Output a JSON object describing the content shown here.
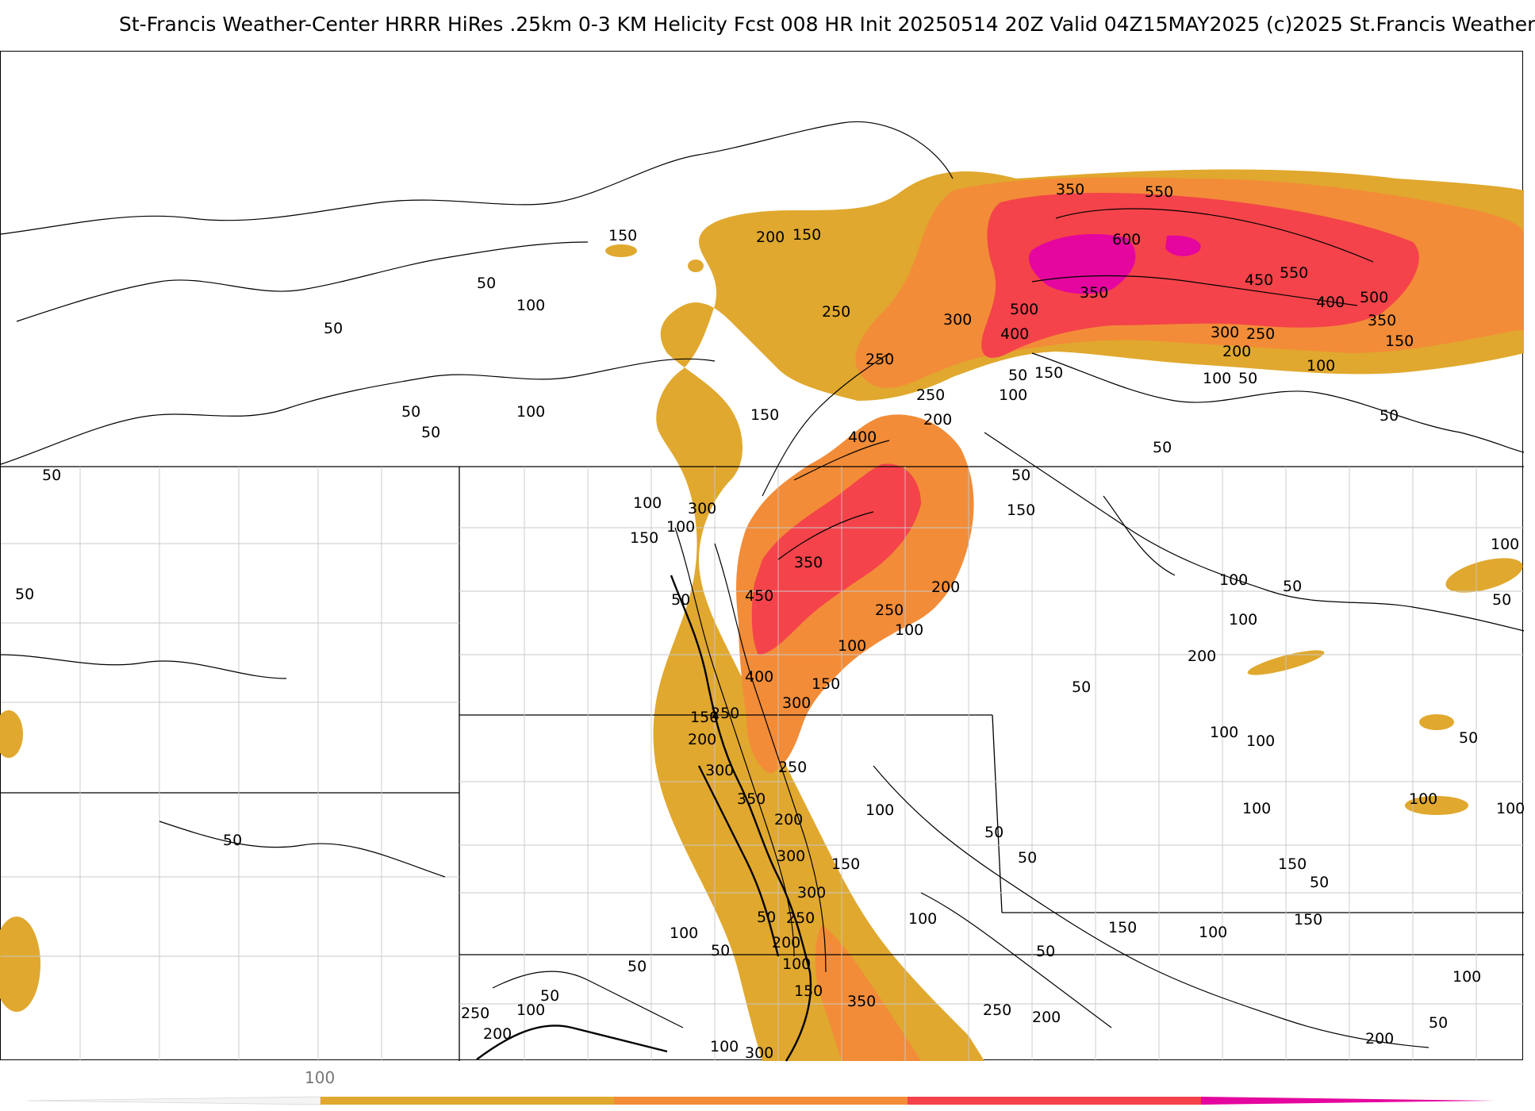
{
  "header": {
    "title": "St-Francis Weather-Center HRRR HiRes .25km 0-3 KM Helicity Fcst 008 HR Init 20250514 20Z  Valid 04Z15MAY2025     (c)2025 St.Francis Weather"
  },
  "map": {
    "shading_colors": {
      "c100": "#e0a82e",
      "c200": "#f28c38",
      "c300": "#f4434a",
      "c400": "#ec2d74",
      "c500": "#e4069f"
    },
    "contour_labels": [
      {
        "text": "350"
      },
      {
        "text": "550"
      },
      {
        "text": "600"
      },
      {
        "text": "150"
      },
      {
        "text": "200"
      },
      {
        "text": "150"
      },
      {
        "text": "50"
      },
      {
        "text": "100"
      },
      {
        "text": "50"
      },
      {
        "text": "250"
      },
      {
        "text": "300"
      },
      {
        "text": "500"
      },
      {
        "text": "400"
      },
      {
        "text": "350"
      },
      {
        "text": "450"
      },
      {
        "text": "550"
      },
      {
        "text": "400"
      },
      {
        "text": "500"
      },
      {
        "text": "350"
      },
      {
        "text": "300"
      },
      {
        "text": "250"
      },
      {
        "text": "200"
      },
      {
        "text": "150"
      },
      {
        "text": "100"
      },
      {
        "text": "100"
      },
      {
        "text": "50"
      },
      {
        "text": "50"
      },
      {
        "text": "150"
      },
      {
        "text": "100"
      },
      {
        "text": "250"
      },
      {
        "text": "250"
      },
      {
        "text": "200"
      },
      {
        "text": "150"
      },
      {
        "text": "400"
      },
      {
        "text": "50"
      },
      {
        "text": "50"
      },
      {
        "text": "100"
      },
      {
        "text": "50"
      },
      {
        "text": "50"
      },
      {
        "text": "100"
      },
      {
        "text": "300"
      },
      {
        "text": "100"
      },
      {
        "text": "150"
      },
      {
        "text": "50"
      },
      {
        "text": "150"
      },
      {
        "text": "350"
      },
      {
        "text": "450"
      },
      {
        "text": "200"
      },
      {
        "text": "250"
      },
      {
        "text": "100"
      },
      {
        "text": "100"
      },
      {
        "text": "50"
      },
      {
        "text": "50"
      },
      {
        "text": "100"
      },
      {
        "text": "400"
      },
      {
        "text": "150"
      },
      {
        "text": "300"
      },
      {
        "text": "100"
      },
      {
        "text": "150"
      },
      {
        "text": "250"
      },
      {
        "text": "50"
      },
      {
        "text": "200"
      },
      {
        "text": "300"
      },
      {
        "text": "250"
      },
      {
        "text": "350"
      },
      {
        "text": "200"
      },
      {
        "text": "100"
      },
      {
        "text": "300"
      },
      {
        "text": "150"
      },
      {
        "text": "300"
      },
      {
        "text": "250"
      },
      {
        "text": "50"
      },
      {
        "text": "200"
      },
      {
        "text": "100"
      },
      {
        "text": "50"
      },
      {
        "text": "100"
      },
      {
        "text": "50"
      },
      {
        "text": "150"
      },
      {
        "text": "350"
      },
      {
        "text": "250"
      },
      {
        "text": "200"
      },
      {
        "text": "100"
      },
      {
        "text": "300"
      },
      {
        "text": "50"
      },
      {
        "text": "100"
      },
      {
        "text": "200"
      },
      {
        "text": "250"
      },
      {
        "text": "100"
      },
      {
        "text": "150"
      },
      {
        "text": "200"
      },
      {
        "text": "50"
      },
      {
        "text": "100"
      },
      {
        "text": "50"
      },
      {
        "text": "50"
      },
      {
        "text": "100"
      },
      {
        "text": "50"
      },
      {
        "text": "100"
      },
      {
        "text": "150"
      },
      {
        "text": "100"
      },
      {
        "text": "150"
      },
      {
        "text": "100"
      },
      {
        "text": "200"
      },
      {
        "text": "50"
      },
      {
        "text": "100"
      },
      {
        "text": "100"
      },
      {
        "text": "50"
      },
      {
        "text": "50"
      },
      {
        "text": "50"
      },
      {
        "text": "100"
      },
      {
        "text": "50"
      },
      {
        "text": "50"
      }
    ]
  },
  "colorbar": {
    "tick_label": "100",
    "segments": [
      {
        "color": "#e0a82e"
      },
      {
        "color": "#f28c38"
      },
      {
        "color": "#f4434a"
      },
      {
        "color": "#e4069f"
      }
    ]
  }
}
